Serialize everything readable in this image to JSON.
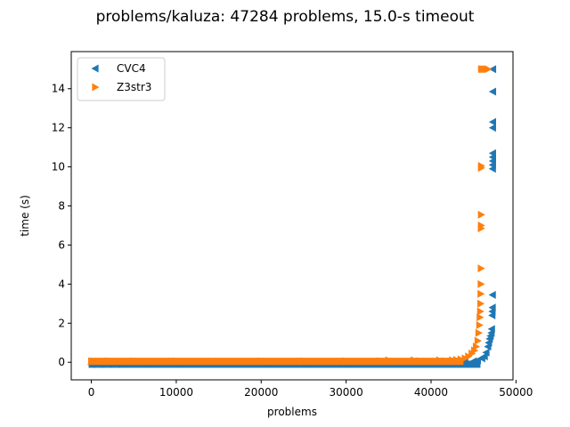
{
  "chart_data": {
    "type": "scatter",
    "title": "problems/kaluza: 47284 problems, 15.0-s timeout",
    "xlabel": "problems",
    "ylabel": "time (s)",
    "xlim": [
      -2364,
      49648
    ],
    "ylim": [
      -0.9,
      15.9
    ],
    "xticks": [
      0,
      10000,
      20000,
      30000,
      40000,
      50000
    ],
    "yticks": [
      0,
      2,
      4,
      6,
      8,
      10,
      12,
      14
    ],
    "grid": false,
    "legend_position": "top-left",
    "series": [
      {
        "name": "CVC4",
        "marker": "triangle-left",
        "color": "#1f77b4",
        "points": [
          [
            0,
            -0.1
          ],
          [
            1000,
            -0.1
          ],
          [
            2000,
            -0.1
          ],
          [
            3000,
            -0.1
          ],
          [
            4000,
            -0.05
          ],
          [
            6000,
            0.0
          ],
          [
            10000,
            0.0
          ],
          [
            15000,
            0.0
          ],
          [
            20000,
            0.0
          ],
          [
            25000,
            0.0
          ],
          [
            30000,
            0.0
          ],
          [
            35000,
            0.0
          ],
          [
            38000,
            0.05
          ],
          [
            41000,
            0.05
          ],
          [
            43000,
            0.05
          ],
          [
            44000,
            0.05
          ],
          [
            45000,
            0.05
          ],
          [
            45500,
            0.1
          ],
          [
            46000,
            0.2
          ],
          [
            46300,
            0.3
          ],
          [
            46500,
            0.5
          ],
          [
            46700,
            0.8
          ],
          [
            46800,
            1.0
          ],
          [
            46900,
            1.2
          ],
          [
            47000,
            1.35
          ],
          [
            47100,
            1.5
          ],
          [
            47150,
            1.7
          ],
          [
            47200,
            2.4
          ],
          [
            47220,
            2.6
          ],
          [
            47240,
            2.8
          ],
          [
            47250,
            3.45
          ],
          [
            47260,
            9.9
          ],
          [
            47265,
            10.1
          ],
          [
            47270,
            10.3
          ],
          [
            47272,
            10.5
          ],
          [
            47274,
            10.7
          ],
          [
            47276,
            12.0
          ],
          [
            47278,
            12.3
          ],
          [
            47280,
            13.85
          ],
          [
            47284,
            15.0
          ]
        ]
      },
      {
        "name": "Z3str3",
        "marker": "triangle-right",
        "color": "#ff7f0e",
        "points": [
          [
            0,
            0.05
          ],
          [
            2000,
            0.05
          ],
          [
            5000,
            0.05
          ],
          [
            10000,
            0.05
          ],
          [
            15000,
            0.05
          ],
          [
            20000,
            0.05
          ],
          [
            25000,
            0.05
          ],
          [
            30000,
            0.05
          ],
          [
            34000,
            0.05
          ],
          [
            35000,
            0.1
          ],
          [
            38000,
            0.1
          ],
          [
            41000,
            0.1
          ],
          [
            42500,
            0.1
          ],
          [
            43000,
            0.12
          ],
          [
            43500,
            0.15
          ],
          [
            44000,
            0.2
          ],
          [
            44400,
            0.3
          ],
          [
            44800,
            0.45
          ],
          [
            45100,
            0.6
          ],
          [
            45300,
            0.8
          ],
          [
            45500,
            1.1
          ],
          [
            45600,
            1.5
          ],
          [
            45700,
            1.9
          ],
          [
            45750,
            2.3
          ],
          [
            45800,
            2.6
          ],
          [
            45830,
            3.0
          ],
          [
            45850,
            3.5
          ],
          [
            45870,
            4.0
          ],
          [
            45880,
            4.8
          ],
          [
            45890,
            6.85
          ],
          [
            45895,
            7.0
          ],
          [
            45900,
            7.55
          ],
          [
            45905,
            9.95
          ],
          [
            45910,
            10.05
          ],
          [
            45915,
            15.0
          ],
          [
            46100,
            15.0
          ],
          [
            46300,
            15.0
          ],
          [
            46500,
            15.0
          ],
          [
            46700,
            15.0
          ]
        ]
      }
    ]
  }
}
